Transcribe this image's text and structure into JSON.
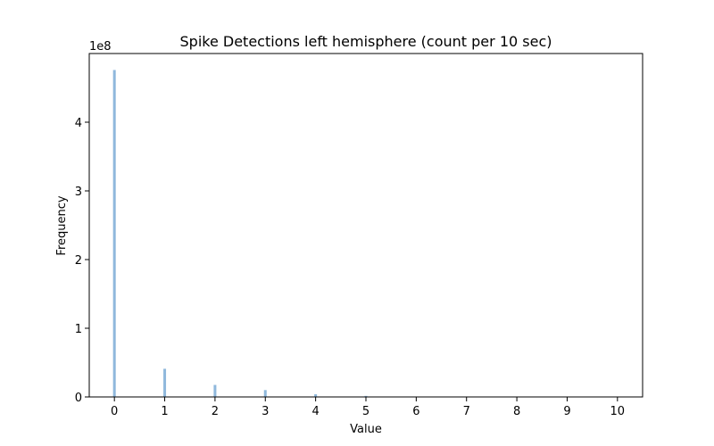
{
  "chart_data": {
    "type": "bar",
    "title": "Spike Detections left hemisphere (count per 10 sec)",
    "xlabel": "Value",
    "ylabel": "Frequency",
    "y_offset_label": "1e8",
    "x": [
      0,
      1,
      2,
      3,
      4,
      5,
      6,
      7,
      8,
      9,
      10
    ],
    "values": [
      476000000,
      41000000,
      17500000,
      10000000,
      4000000,
      1500000,
      500000,
      200000,
      100000,
      50000,
      20000
    ],
    "xlim": [
      -0.5,
      10.5
    ],
    "ylim": [
      0,
      500000000
    ],
    "x_ticks": [
      "0",
      "1",
      "2",
      "3",
      "4",
      "5",
      "6",
      "7",
      "8",
      "9",
      "10"
    ],
    "y_ticks": [
      0,
      100000000,
      200000000,
      300000000,
      400000000
    ],
    "y_tick_labels": [
      "0",
      "1",
      "2",
      "3",
      "4"
    ],
    "grid": false,
    "legend": "none",
    "bar_color": "#8fb8dc"
  }
}
